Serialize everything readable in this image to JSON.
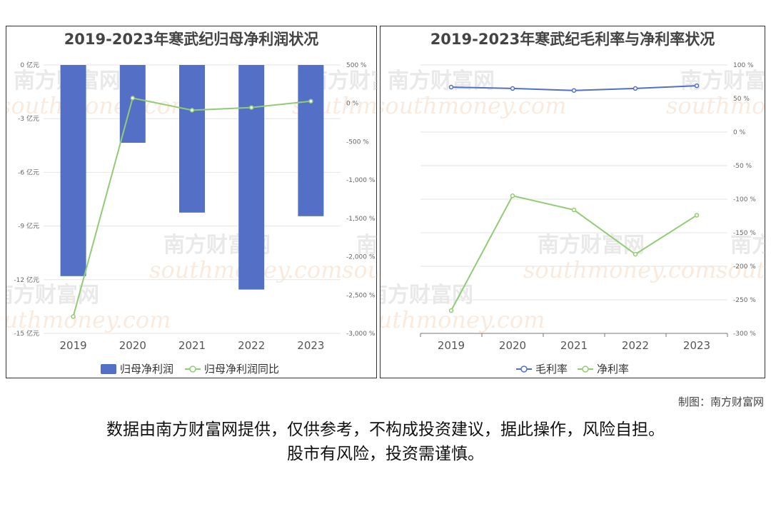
{
  "left_chart": {
    "title": "2019-2023年寒武纪归母净利润状况",
    "legend": [
      "归母净利润",
      "归母净利润同比"
    ]
  },
  "right_chart": {
    "title": "2019-2023年寒武纪毛利率与净利率状况",
    "legend": [
      "毛利率",
      "净利率"
    ]
  },
  "watermark": {
    "cn": "南方财富网",
    "en": "southmoney.com"
  },
  "credit": "制图：南方财富网",
  "disclaimer": {
    "line1": "数据由南方财富网提供，仅供参考，不构成投资建议，据此操作，风险自担。",
    "line2": "股市有风险，投资需谨慎。"
  },
  "colors": {
    "bar": "#5470c6",
    "green_line": "#91cc75",
    "blue_line": "#5470c6"
  },
  "chart_data": [
    {
      "type": "bar",
      "title": "2019-2023年寒武纪归母净利润状况",
      "categories": [
        "2019",
        "2020",
        "2021",
        "2022",
        "2023"
      ],
      "series": [
        {
          "name": "归母净利润",
          "type": "bar",
          "axis": "left",
          "values": [
            -11.8,
            -4.35,
            -8.25,
            -12.55,
            -8.45
          ]
        },
        {
          "name": "归母净利润同比",
          "type": "line",
          "axis": "right",
          "values": [
            -2780,
            68,
            -90,
            -55,
            28
          ]
        }
      ],
      "y_left": {
        "ticks": [
          0,
          -3,
          -6,
          -9,
          -12,
          -15
        ],
        "tick_labels": [
          "0 亿元",
          "-3 亿元",
          "-6 亿元",
          "-9 亿元",
          "-12 亿元",
          "-15 亿元"
        ],
        "range": [
          -15,
          0
        ]
      },
      "y_right": {
        "ticks": [
          500,
          0,
          -500,
          -1000,
          -1500,
          -2000,
          -2500,
          -3000
        ],
        "tick_labels": [
          "500 %",
          "0 %",
          "-500 %",
          "-1,000 %",
          "-1,500 %",
          "-2,000 %",
          "-2,500 %",
          "-3,000 %"
        ],
        "range": [
          -3000,
          500
        ]
      },
      "legend": "bottom-center"
    },
    {
      "type": "line",
      "title": "2019-2023年寒武纪毛利率与净利率状况",
      "categories": [
        "2019",
        "2020",
        "2021",
        "2022",
        "2023"
      ],
      "series": [
        {
          "name": "毛利率",
          "values": [
            67,
            65,
            62,
            65,
            69
          ]
        },
        {
          "name": "净利率",
          "values": [
            -266,
            -95,
            -116,
            -182,
            -124
          ]
        }
      ],
      "y_right": {
        "ticks": [
          100,
          50,
          0,
          -50,
          -100,
          -150,
          -200,
          -250,
          -300
        ],
        "tick_labels": [
          "100 %",
          "50 %",
          "0 %",
          "-50 %",
          "-100 %",
          "-150 %",
          "-200 %",
          "-250 %",
          "-300 %"
        ],
        "range": [
          -300,
          100
        ]
      },
      "legend": "bottom-center"
    }
  ]
}
